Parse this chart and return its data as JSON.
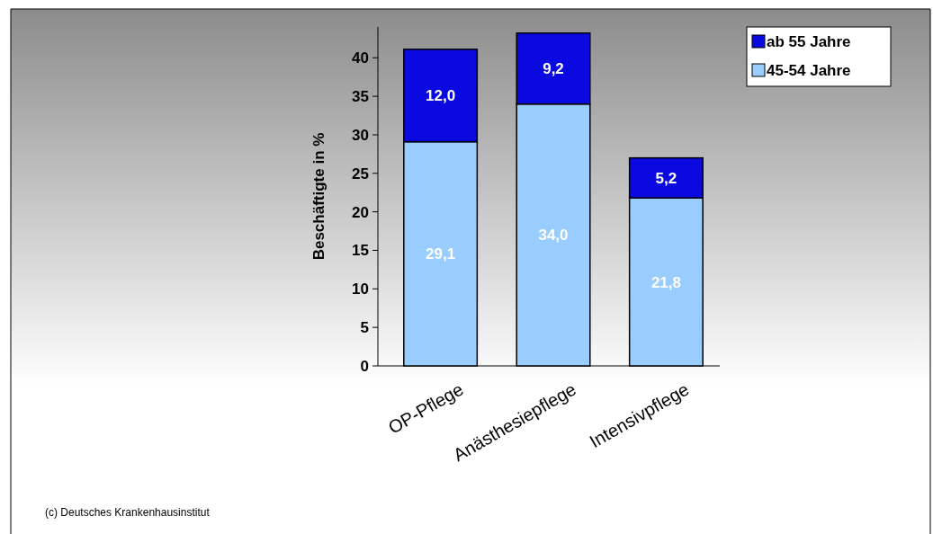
{
  "chart_data": {
    "type": "bar",
    "stacked": true,
    "ylabel": "Beschäftigte in %",
    "categories": [
      "OP-Pflege",
      "Anästhesiepflege",
      "Intensivpflege"
    ],
    "series": [
      {
        "name": "45-54 Jahre",
        "color": "#99ccff",
        "values": [
          29.1,
          34.0,
          21.8
        ],
        "value_labels": [
          "29,1",
          "34,0",
          "21,8"
        ]
      },
      {
        "name": "ab 55 Jahre",
        "color": "#0a0ae0",
        "values": [
          12.0,
          9.2,
          5.2
        ],
        "value_labels": [
          "12,0",
          "9,2",
          "5,2"
        ]
      }
    ],
    "ylim": [
      0,
      44
    ],
    "yticks": [
      0,
      5,
      10,
      15,
      20,
      25,
      30,
      35,
      40
    ],
    "grid": false,
    "legend": "top right",
    "annotations": [
      "(c) Deutsches Krankenhausinstitut"
    ]
  }
}
